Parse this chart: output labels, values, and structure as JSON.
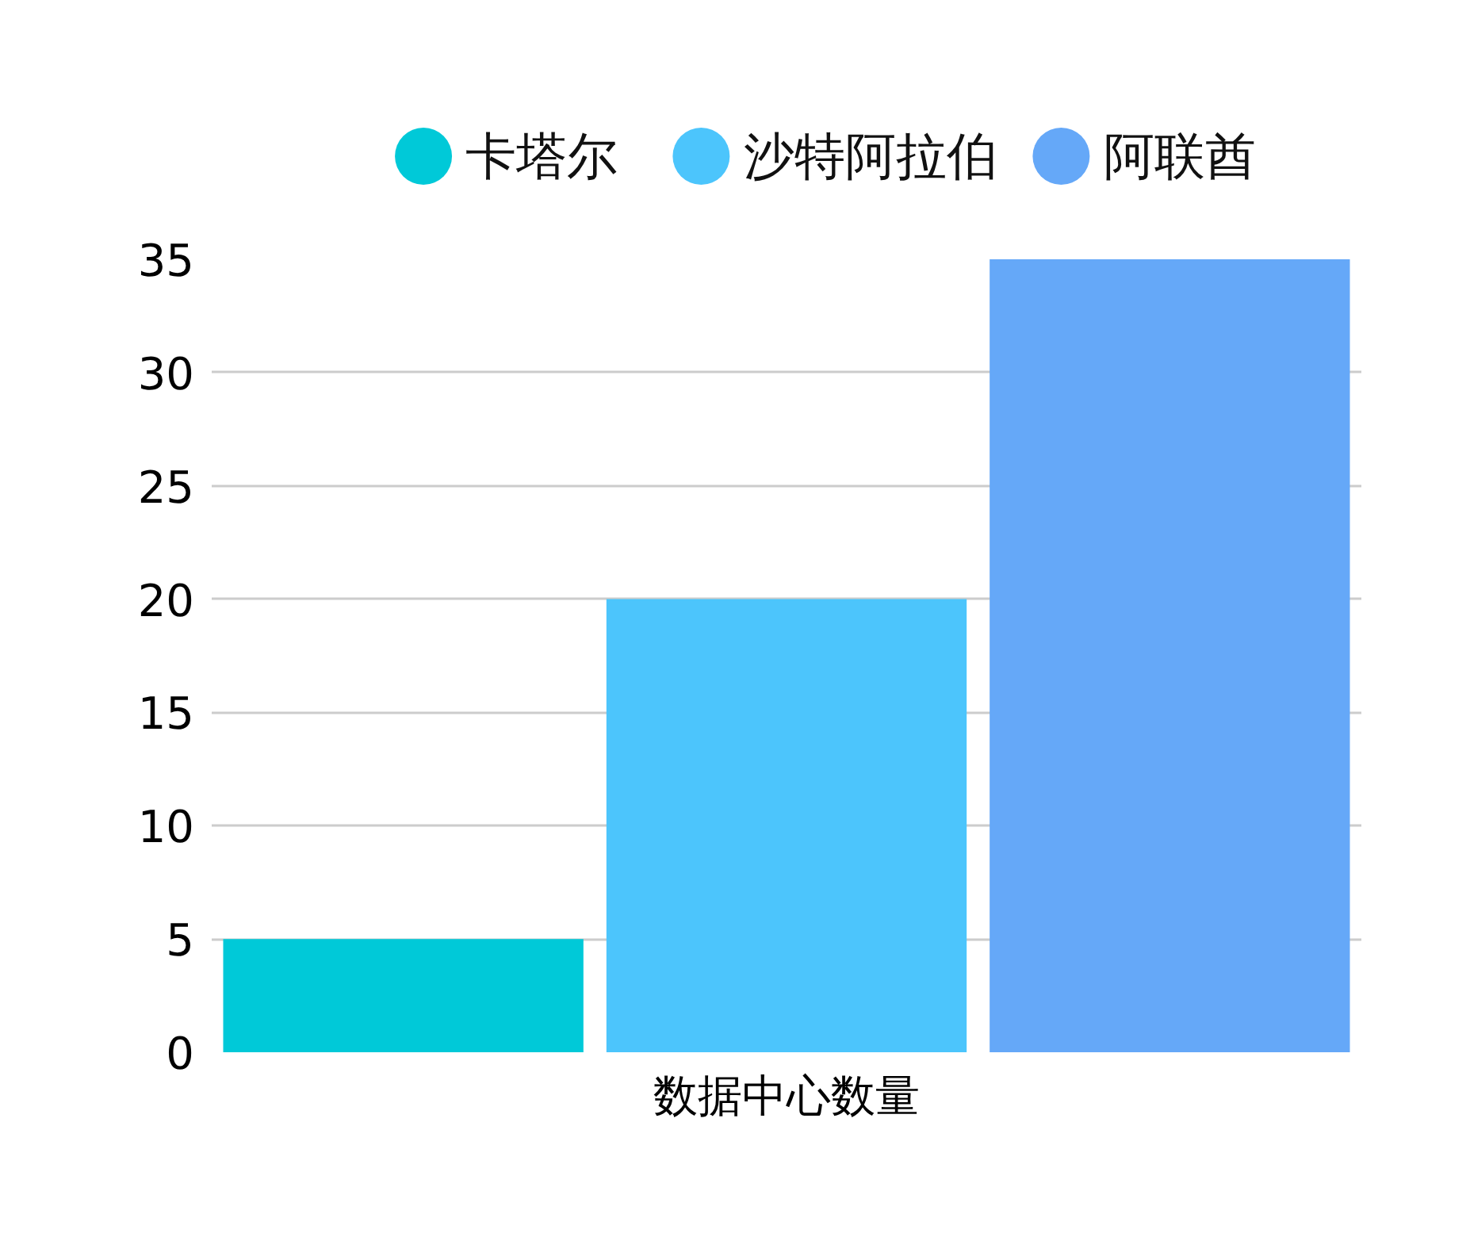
{
  "chart_data": {
    "type": "bar",
    "categories": [
      "数据中心数量"
    ],
    "series": [
      {
        "name": "卡塔尔",
        "color": "#00c9d8",
        "values": [
          5
        ]
      },
      {
        "name": "沙特阿拉伯",
        "color": "#4cc5fc",
        "values": [
          20
        ]
      },
      {
        "name": "阿联酋",
        "color": "#65a8f8",
        "values": [
          35
        ]
      }
    ],
    "ylim": [
      0,
      35
    ],
    "yticks": [
      0,
      5,
      10,
      15,
      20,
      25,
      30,
      35
    ],
    "grid": "y",
    "legend": "top"
  }
}
